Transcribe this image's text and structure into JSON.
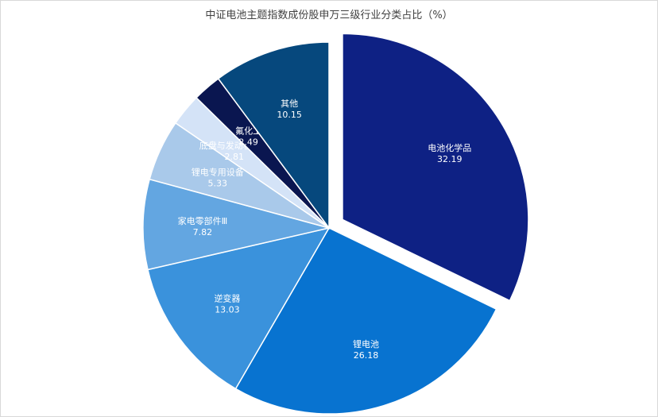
{
  "chart_data": {
    "type": "pie",
    "title": "中证电池主题指数成份股申万三级行业分类占比（%）",
    "categories": [
      "电池化学品",
      "锂电池",
      "逆变器",
      "家电零部件Ⅲ",
      "锂电专用设备",
      "底盘与发动机系统",
      "氟化工",
      "其他"
    ],
    "values": [
      32.19,
      26.18,
      13.03,
      7.82,
      5.33,
      2.81,
      2.49,
      10.15
    ],
    "value_labels": [
      "32.19",
      "26.18",
      "13.03",
      "7.82",
      "5.33",
      "2.81",
      "2.49",
      "10.15"
    ],
    "colors": [
      "#0e2184",
      "#0873d0",
      "#3a92dc",
      "#63a6e1",
      "#a9c9ea",
      "#d4e3f7",
      "#0a1650",
      "#06487d"
    ],
    "exploded": [
      "电池化学品"
    ],
    "legend": "none",
    "data_labels": "inside"
  }
}
